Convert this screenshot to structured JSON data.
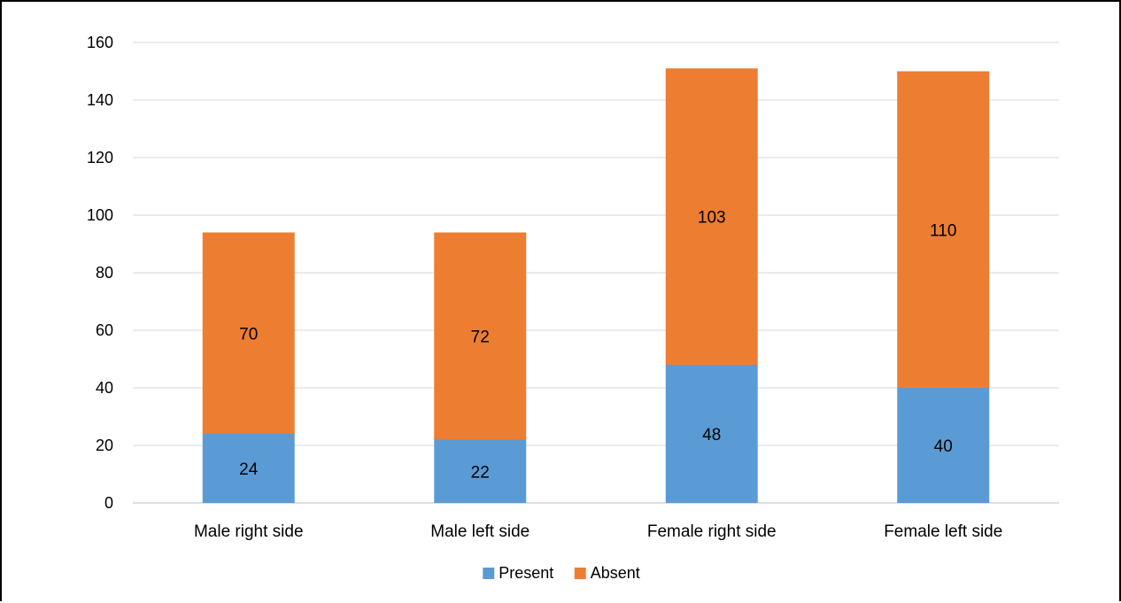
{
  "chart_data": {
    "type": "bar",
    "stacked": true,
    "categories": [
      "Male right side",
      "Male left side",
      "Female right side",
      "Female left side"
    ],
    "series": [
      {
        "name": "Present",
        "values": [
          24,
          22,
          48,
          40
        ],
        "color": "#5b9bd5"
      },
      {
        "name": "Absent",
        "values": [
          70,
          72,
          103,
          110
        ],
        "color": "#ed7d31"
      }
    ],
    "yticks": [
      0,
      20,
      40,
      60,
      80,
      100,
      120,
      140,
      160
    ],
    "ylim": [
      0,
      160
    ],
    "grid": true,
    "legend_position": "bottom",
    "data_labels": true,
    "title": "",
    "xlabel": "",
    "ylabel": ""
  }
}
